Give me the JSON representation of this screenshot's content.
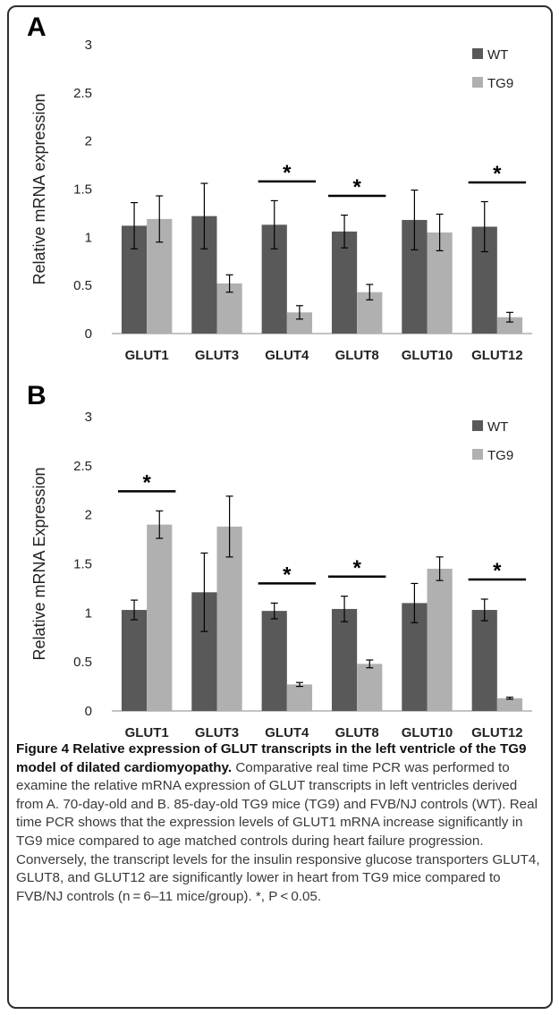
{
  "panels": [
    {
      "letter": "A",
      "chart_data": {
        "type": "bar",
        "categories": [
          "GLUT1",
          "GLUT3",
          "GLUT4",
          "GLUT8",
          "GLUT10",
          "GLUT12"
        ],
        "series": [
          {
            "name": "WT",
            "color": "#595959",
            "values": [
              1.12,
              1.22,
              1.13,
              1.06,
              1.18,
              1.11
            ],
            "errors": [
              0.24,
              0.34,
              0.25,
              0.17,
              0.31,
              0.26
            ]
          },
          {
            "name": "TG9",
            "color": "#b0b0b0",
            "values": [
              1.19,
              0.52,
              0.22,
              0.43,
              1.05,
              0.17
            ],
            "errors": [
              0.24,
              0.09,
              0.07,
              0.08,
              0.19,
              0.05
            ]
          }
        ],
        "ylabel": "Relative mRNA expression",
        "ylim": [
          0,
          3
        ],
        "yticks": [
          "0",
          "0.5",
          "1",
          "1.5",
          "2",
          "2.5",
          "3"
        ],
        "legend_position": "top-right",
        "grid": false,
        "significance": [
          {
            "category": "GLUT4",
            "label": "*"
          },
          {
            "category": "GLUT8",
            "label": "*"
          },
          {
            "category": "GLUT12",
            "label": "*"
          }
        ]
      }
    },
    {
      "letter": "B",
      "chart_data": {
        "type": "bar",
        "categories": [
          "GLUT1",
          "GLUT3",
          "GLUT4",
          "GLUT8",
          "GLUT10",
          "GLUT12"
        ],
        "series": [
          {
            "name": "WT",
            "color": "#595959",
            "values": [
              1.03,
              1.21,
              1.02,
              1.04,
              1.1,
              1.03
            ],
            "errors": [
              0.1,
              0.4,
              0.08,
              0.13,
              0.2,
              0.11
            ]
          },
          {
            "name": "TG9",
            "color": "#b0b0b0",
            "values": [
              1.9,
              1.88,
              0.27,
              0.48,
              1.45,
              0.13
            ],
            "errors": [
              0.14,
              0.31,
              0.02,
              0.04,
              0.12,
              0.01
            ]
          }
        ],
        "ylabel": "Relative mRNA Expression",
        "ylim": [
          0,
          3
        ],
        "yticks": [
          "0",
          "0.5",
          "1",
          "1.5",
          "2",
          "2.5",
          "3"
        ],
        "legend_position": "top-right",
        "grid": false,
        "significance": [
          {
            "category": "GLUT1",
            "label": "*"
          },
          {
            "category": "GLUT4",
            "label": "*"
          },
          {
            "category": "GLUT8",
            "label": "*"
          },
          {
            "category": "GLUT12",
            "label": "*"
          }
        ]
      }
    }
  ],
  "caption": {
    "title": "Figure 4 Relative expression of GLUT transcripts in the left ventricle of the TG9 model of dilated cardiomyopathy.",
    "body": "Comparative real time PCR was performed to examine the relative mRNA expression of GLUT transcripts in left ventricles derived from A. 70-day-old and B. 85-day-old TG9 mice (TG9) and FVB/NJ controls (WT). Real time PCR shows that the expression levels of GLUT1 mRNA increase significantly in TG9 mice compared to age matched controls during heart failure progression. Conversely, the transcript levels for the insulin responsive glucose transporters GLUT4, GLUT8, and GLUT12 are significantly lower in heart from TG9 mice compared to FVB/NJ controls (n = 6–11 mice/group). *, P < 0.05."
  }
}
